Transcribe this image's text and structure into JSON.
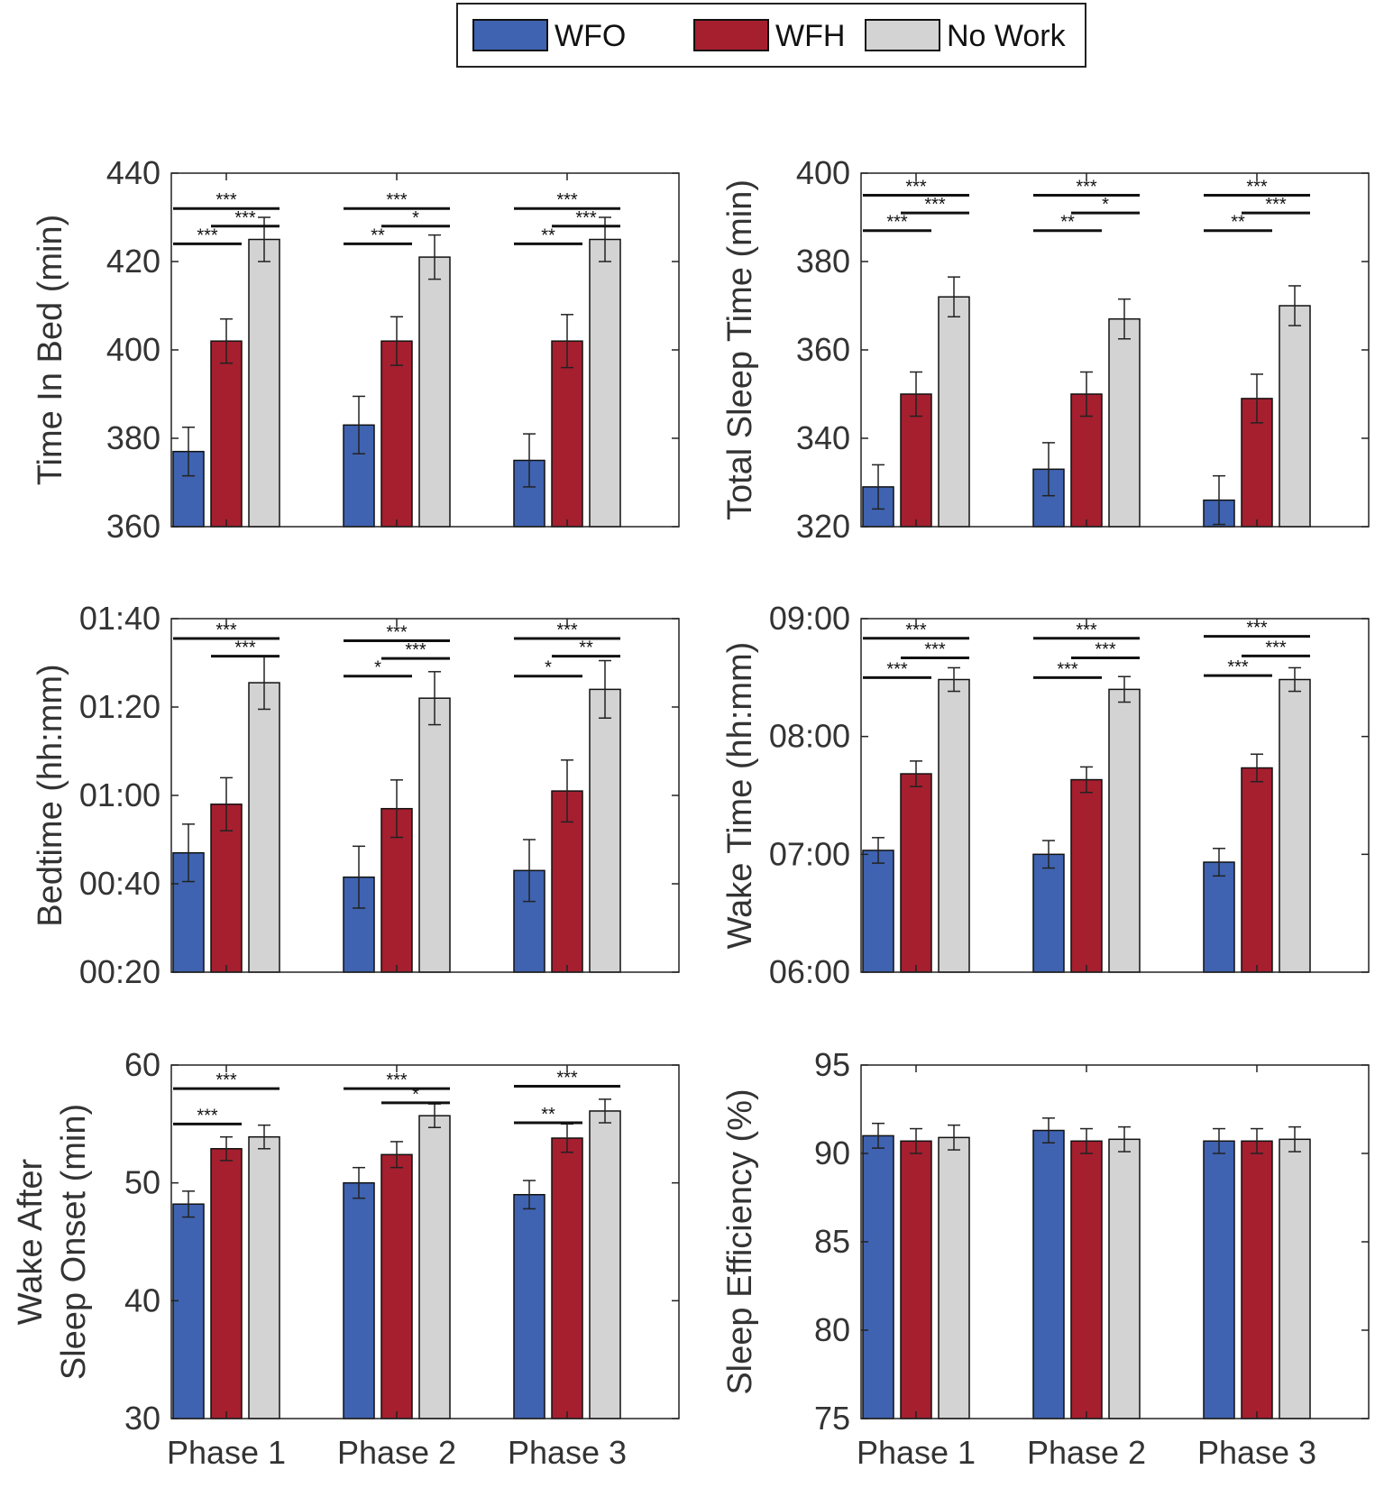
{
  "legend": {
    "items": [
      {
        "label": "WFO",
        "color": "#3f63b1"
      },
      {
        "label": "WFH",
        "color": "#a51f2f"
      },
      {
        "label": "No Work",
        "color": "#d3d3d3"
      }
    ]
  },
  "colors": {
    "axis": "#222222",
    "text": "#333333",
    "bar_outline": "#111111"
  },
  "chart_data": [
    {
      "id": "time-in-bed",
      "type": "bar",
      "ylabel": [
        "Time In Bed (min)"
      ],
      "ylim": [
        360,
        440
      ],
      "yticks": [
        360,
        380,
        400,
        420,
        440
      ],
      "ytick_labels": [
        "360",
        "380",
        "400",
        "420",
        "440"
      ],
      "categories": [
        "Phase 1",
        "Phase 2",
        "Phase 3"
      ],
      "show_xticklabels": false,
      "series": [
        {
          "name": "WFO",
          "values": [
            377,
            383,
            375
          ],
          "err": [
            5.5,
            6.5,
            6
          ]
        },
        {
          "name": "WFH",
          "values": [
            402,
            402,
            402
          ],
          "err": [
            5,
            5.5,
            6
          ]
        },
        {
          "name": "No Work",
          "values": [
            425,
            421,
            425
          ],
          "err": [
            5,
            5,
            5
          ]
        }
      ],
      "significance": [
        {
          "phase": 0,
          "from": 0,
          "to": 2,
          "label": "***",
          "level": 432
        },
        {
          "phase": 0,
          "from": 1,
          "to": 2,
          "label": "***",
          "level": 428
        },
        {
          "phase": 0,
          "from": 0,
          "to": 1,
          "label": "***",
          "level": 424
        },
        {
          "phase": 1,
          "from": 0,
          "to": 2,
          "label": "***",
          "level": 432
        },
        {
          "phase": 1,
          "from": 1,
          "to": 2,
          "label": "*",
          "level": 428
        },
        {
          "phase": 1,
          "from": 0,
          "to": 1,
          "label": "**",
          "level": 424
        },
        {
          "phase": 2,
          "from": 0,
          "to": 2,
          "label": "***",
          "level": 432
        },
        {
          "phase": 2,
          "from": 1,
          "to": 2,
          "label": "***",
          "level": 428
        },
        {
          "phase": 2,
          "from": 0,
          "to": 1,
          "label": "**",
          "level": 424
        }
      ]
    },
    {
      "id": "total-sleep-time",
      "type": "bar",
      "ylabel": [
        "Total Sleep Time (min)"
      ],
      "ylim": [
        320,
        400
      ],
      "yticks": [
        320,
        340,
        360,
        380,
        400
      ],
      "ytick_labels": [
        "320",
        "340",
        "360",
        "380",
        "400"
      ],
      "categories": [
        "Phase 1",
        "Phase 2",
        "Phase 3"
      ],
      "show_xticklabels": false,
      "series": [
        {
          "name": "WFO",
          "values": [
            329,
            333,
            326
          ],
          "err": [
            5,
            6,
            5.5
          ]
        },
        {
          "name": "WFH",
          "values": [
            350,
            350,
            349
          ],
          "err": [
            5,
            5,
            5.5
          ]
        },
        {
          "name": "No Work",
          "values": [
            372,
            367,
            370
          ],
          "err": [
            4.5,
            4.5,
            4.5
          ]
        }
      ],
      "significance": [
        {
          "phase": 0,
          "from": 0,
          "to": 2,
          "label": "***",
          "level": 395
        },
        {
          "phase": 0,
          "from": 1,
          "to": 2,
          "label": "***",
          "level": 391
        },
        {
          "phase": 0,
          "from": 0,
          "to": 1,
          "label": "***",
          "level": 387
        },
        {
          "phase": 1,
          "from": 0,
          "to": 2,
          "label": "***",
          "level": 395
        },
        {
          "phase": 1,
          "from": 1,
          "to": 2,
          "label": "*",
          "level": 391
        },
        {
          "phase": 1,
          "from": 0,
          "to": 1,
          "label": "**",
          "level": 387
        },
        {
          "phase": 2,
          "from": 0,
          "to": 2,
          "label": "***",
          "level": 395
        },
        {
          "phase": 2,
          "from": 1,
          "to": 2,
          "label": "***",
          "level": 391
        },
        {
          "phase": 2,
          "from": 0,
          "to": 1,
          "label": "**",
          "level": 387
        }
      ]
    },
    {
      "id": "bedtime",
      "type": "bar",
      "ylabel": [
        "Bedtime (hh:mm)"
      ],
      "ylim": [
        20,
        100
      ],
      "yticks": [
        20,
        40,
        60,
        80,
        100
      ],
      "ytick_labels": [
        "00:20",
        "00:40",
        "01:00",
        "01:20",
        "01:40"
      ],
      "categories": [
        "Phase 1",
        "Phase 2",
        "Phase 3"
      ],
      "show_xticklabels": false,
      "series": [
        {
          "name": "WFO",
          "values": [
            47,
            41.5,
            43
          ],
          "err": [
            6.5,
            7,
            7
          ]
        },
        {
          "name": "WFH",
          "values": [
            58,
            57,
            61
          ],
          "err": [
            6,
            6.5,
            7
          ]
        },
        {
          "name": "No Work",
          "values": [
            85.5,
            82,
            84
          ],
          "err": [
            6,
            6,
            6.5
          ]
        }
      ],
      "significance": [
        {
          "phase": 0,
          "from": 0,
          "to": 2,
          "label": "***",
          "level": 95.5
        },
        {
          "phase": 0,
          "from": 1,
          "to": 2,
          "label": "***",
          "level": 91.5
        },
        {
          "phase": 1,
          "from": 0,
          "to": 2,
          "label": "***",
          "level": 95
        },
        {
          "phase": 1,
          "from": 1,
          "to": 2,
          "label": "***",
          "level": 91
        },
        {
          "phase": 1,
          "from": 0,
          "to": 1,
          "label": "*",
          "level": 87
        },
        {
          "phase": 2,
          "from": 0,
          "to": 2,
          "label": "***",
          "level": 95.5
        },
        {
          "phase": 2,
          "from": 1,
          "to": 2,
          "label": "**",
          "level": 91.5
        },
        {
          "phase": 2,
          "from": 0,
          "to": 1,
          "label": "*",
          "level": 87
        }
      ]
    },
    {
      "id": "wake-time",
      "type": "bar",
      "ylabel": [
        "Wake Time (hh:mm)"
      ],
      "ylim": [
        360,
        540
      ],
      "yticks": [
        360,
        420,
        480,
        540
      ],
      "ytick_labels": [
        "06:00",
        "07:00",
        "08:00",
        "09:00"
      ],
      "categories": [
        "Phase 1",
        "Phase 2",
        "Phase 3"
      ],
      "show_xticklabels": false,
      "series": [
        {
          "name": "WFO",
          "values": [
            422,
            420,
            416
          ],
          "err": [
            6.5,
            7,
            7
          ]
        },
        {
          "name": "WFH",
          "values": [
            461,
            458,
            464
          ],
          "err": [
            6.5,
            6.5,
            7
          ]
        },
        {
          "name": "No Work",
          "values": [
            509,
            504,
            509
          ],
          "err": [
            6,
            6.5,
            6
          ]
        }
      ],
      "significance": [
        {
          "phase": 0,
          "from": 0,
          "to": 2,
          "label": "***",
          "level": 530
        },
        {
          "phase": 0,
          "from": 1,
          "to": 2,
          "label": "***",
          "level": 520
        },
        {
          "phase": 0,
          "from": 0,
          "to": 1,
          "label": "***",
          "level": 510
        },
        {
          "phase": 1,
          "from": 0,
          "to": 2,
          "label": "***",
          "level": 530
        },
        {
          "phase": 1,
          "from": 1,
          "to": 2,
          "label": "***",
          "level": 520
        },
        {
          "phase": 1,
          "from": 0,
          "to": 1,
          "label": "***",
          "level": 510
        },
        {
          "phase": 2,
          "from": 0,
          "to": 2,
          "label": "***",
          "level": 531
        },
        {
          "phase": 2,
          "from": 1,
          "to": 2,
          "label": "***",
          "level": 521
        },
        {
          "phase": 2,
          "from": 0,
          "to": 1,
          "label": "***",
          "level": 511
        }
      ]
    },
    {
      "id": "wake-after-sleep-onset",
      "type": "bar",
      "ylabel": [
        "Wake After",
        "Sleep Onset (min)"
      ],
      "ylim": [
        30,
        60
      ],
      "yticks": [
        30,
        40,
        50,
        60
      ],
      "ytick_labels": [
        "30",
        "40",
        "50",
        "60"
      ],
      "categories": [
        "Phase 1",
        "Phase 2",
        "Phase 3"
      ],
      "show_xticklabels": true,
      "series": [
        {
          "name": "WFO",
          "values": [
            48.2,
            50,
            49
          ],
          "err": [
            1.1,
            1.3,
            1.2
          ]
        },
        {
          "name": "WFH",
          "values": [
            52.9,
            52.4,
            53.8
          ],
          "err": [
            1,
            1.1,
            1.2
          ]
        },
        {
          "name": "No Work",
          "values": [
            53.9,
            55.7,
            56.1
          ],
          "err": [
            1,
            1,
            1
          ]
        }
      ],
      "significance": [
        {
          "phase": 0,
          "from": 0,
          "to": 2,
          "label": "***",
          "level": 58.0
        },
        {
          "phase": 0,
          "from": 0,
          "to": 1,
          "label": "***",
          "level": 55.0
        },
        {
          "phase": 1,
          "from": 0,
          "to": 2,
          "label": "***",
          "level": 58.0
        },
        {
          "phase": 1,
          "from": 1,
          "to": 2,
          "label": "*",
          "level": 56.8
        },
        {
          "phase": 2,
          "from": 0,
          "to": 2,
          "label": "***",
          "level": 58.2
        },
        {
          "phase": 2,
          "from": 0,
          "to": 1,
          "label": "**",
          "level": 55.1
        }
      ]
    },
    {
      "id": "sleep-efficiency",
      "type": "bar",
      "ylabel": [
        "Sleep Efficiency (%)"
      ],
      "ylim": [
        75,
        95
      ],
      "yticks": [
        75,
        80,
        85,
        90,
        95
      ],
      "ytick_labels": [
        "75",
        "80",
        "85",
        "90",
        "95"
      ],
      "categories": [
        "Phase 1",
        "Phase 2",
        "Phase 3"
      ],
      "show_xticklabels": true,
      "series": [
        {
          "name": "WFO",
          "values": [
            91,
            91.3,
            90.7
          ],
          "err": [
            0.7,
            0.7,
            0.7
          ]
        },
        {
          "name": "WFH",
          "values": [
            90.7,
            90.7,
            90.7
          ],
          "err": [
            0.7,
            0.7,
            0.7
          ]
        },
        {
          "name": "No Work",
          "values": [
            90.9,
            90.8,
            90.8
          ],
          "err": [
            0.7,
            0.7,
            0.7
          ]
        }
      ],
      "significance": []
    }
  ]
}
